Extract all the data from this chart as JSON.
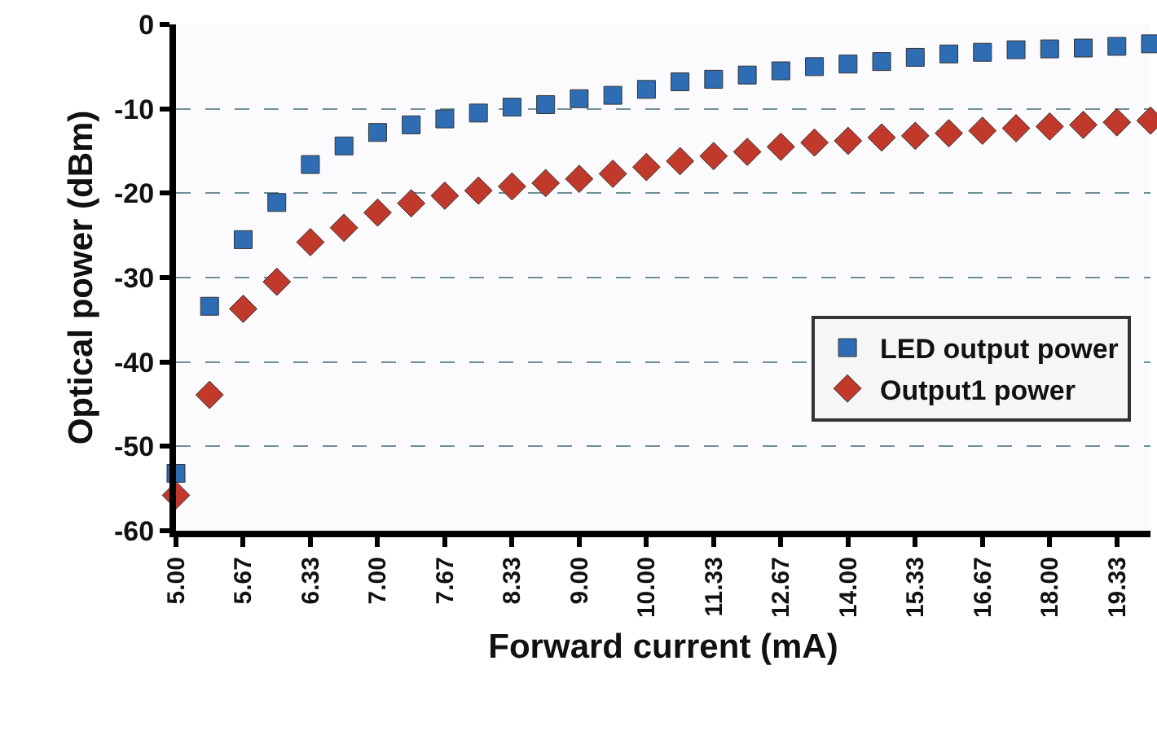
{
  "chart_data": {
    "type": "scatter",
    "xlabel": "Forward current (mA)",
    "ylabel": "Optical power (dBm)",
    "categories": [
      "5.00",
      null,
      "5.67",
      null,
      "6.33",
      null,
      "7.00",
      null,
      "7.67",
      null,
      "8.33",
      null,
      "9.00",
      null,
      "10.00",
      null,
      "11.33",
      null,
      "12.67",
      null,
      "14.00",
      null,
      "15.33",
      null,
      "16.67",
      null,
      "18.00",
      null,
      "19.33",
      null
    ],
    "series": [
      {
        "name": "LED output power",
        "color": "#2e6db4",
        "marker": "square",
        "values": [
          -53.2,
          -33.4,
          -25.5,
          -21.1,
          -16.6,
          -14.4,
          -12.8,
          -11.9,
          -11.2,
          -10.5,
          -9.8,
          -9.5,
          -8.8,
          -8.4,
          -7.7,
          -6.8,
          -6.5,
          -6.0,
          -5.5,
          -5.0,
          -4.7,
          -4.4,
          -3.9,
          -3.5,
          -3.3,
          -3.0,
          -2.9,
          -2.8,
          -2.6,
          -2.3
        ]
      },
      {
        "name": "Output1 power",
        "color": "#c0392b",
        "marker": "diamond",
        "values": [
          -55.8,
          -43.9,
          -33.7,
          -30.5,
          -25.8,
          -24.1,
          -22.3,
          -21.2,
          -20.3,
          -19.7,
          -19.2,
          -18.8,
          -18.3,
          -17.7,
          -16.9,
          -16.2,
          -15.6,
          -15.1,
          -14.5,
          -14.0,
          -13.8,
          -13.4,
          -13.2,
          -12.9,
          -12.6,
          -12.3,
          -12.1,
          -11.9,
          -11.6,
          -11.4
        ]
      }
    ],
    "ylim": [
      -60,
      0
    ],
    "yticks": [
      -60,
      -50,
      -40,
      -30,
      -20,
      -10,
      0
    ],
    "grid": "y",
    "legend": "right"
  }
}
